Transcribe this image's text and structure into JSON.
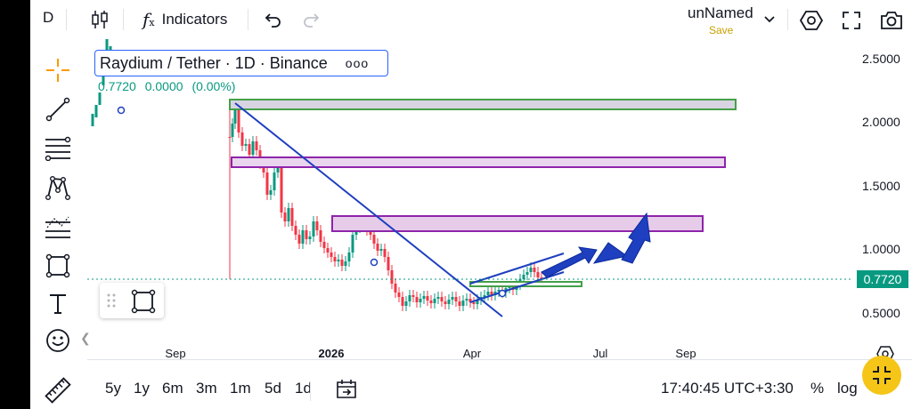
{
  "toolbar": {
    "symbol": "D",
    "indicators_label": "Indicators",
    "layout_name": "unNamed",
    "save_label": "Save",
    "icons": [
      "candles-icon",
      "function-icon",
      "undo-icon",
      "redo-icon",
      "chevron-down-icon",
      "settings-hex-icon",
      "fullscreen-icon",
      "camera-icon"
    ]
  },
  "legend": {
    "title": "Raydium / Tether · 1D · Binance",
    "more": "ooo",
    "last": "0.7720",
    "change": "0.0000",
    "change_pct": "(0.00%)"
  },
  "colors": {
    "up": "#089981",
    "down": "#f23645",
    "trendline": "#1e3fbf",
    "zone_purple": "#8e24aa",
    "zone_green": "#43a047",
    "accent": "#2962ff",
    "fab": "#f5c518"
  },
  "price_axis": {
    "labels": [
      "2.5000",
      "2.0000",
      "1.5000",
      "1.0000",
      "0.5000"
    ],
    "last_price": "0.7720"
  },
  "time_axis": {
    "labels": [
      "Sep",
      "2026",
      "Apr",
      "Jul",
      "Sep"
    ]
  },
  "left_tools": [
    "crosshair-icon",
    "trendline-icon",
    "fib-icon",
    "pattern-icon",
    "prediction-icon",
    "rectangle-icon",
    "text-icon",
    "emoji-icon",
    "ruler-icon"
  ],
  "bottom": {
    "ranges": [
      "5y",
      "1y",
      "6m",
      "3m",
      "1m",
      "5d",
      "1d"
    ],
    "clock": "17:40:45 UTC+3:30",
    "pct": "%",
    "log": "log"
  }
}
